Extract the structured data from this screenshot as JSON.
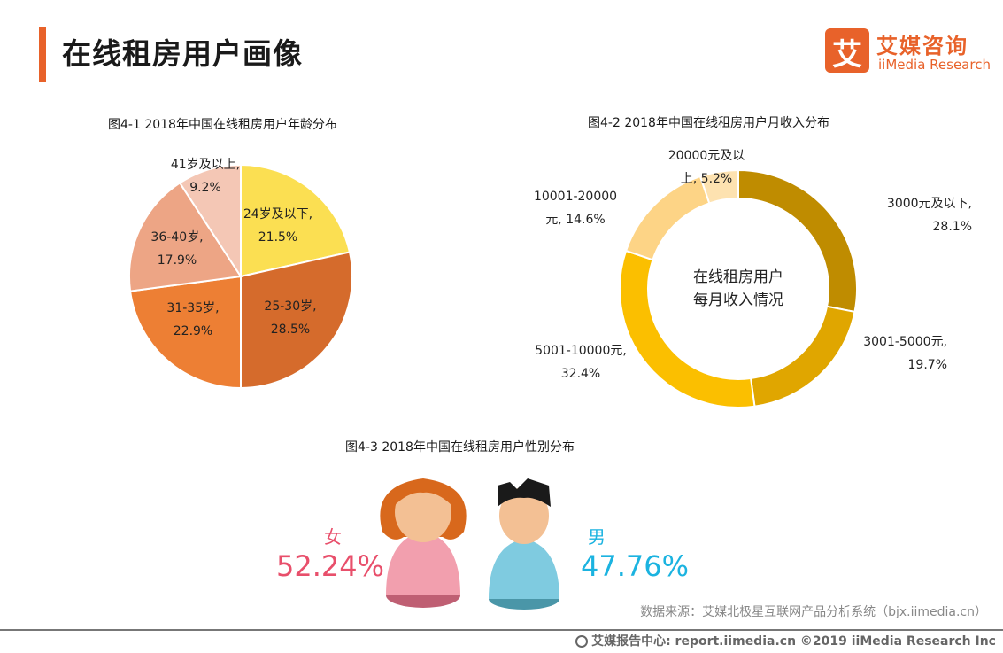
{
  "header": {
    "title": "在线租房用户画像"
  },
  "logo": {
    "mark": "艾",
    "cn": "艾媒咨询",
    "en": "iiMedia Research"
  },
  "chart_data": [
    {
      "type": "pie",
      "title": "图4-1 2018年中国在线租房用户年龄分布",
      "slices": [
        {
          "name": "24岁及以下",
          "value": 21.5,
          "label1": "24岁及以下,",
          "label2": "21.5%",
          "color": "#fbdf52"
        },
        {
          "name": "25-30岁",
          "value": 28.5,
          "label1": "25-30岁,",
          "label2": "28.5%",
          "color": "#d56b2c"
        },
        {
          "name": "31-35岁",
          "value": 22.9,
          "label1": "31-35岁,",
          "label2": "22.9%",
          "color": "#ed7f34"
        },
        {
          "name": "36-40岁",
          "value": 17.9,
          "label1": "36-40岁,",
          "label2": "17.9%",
          "color": "#eda585"
        },
        {
          "name": "41岁及以上",
          "value": 9.2,
          "label1": "41岁及以上,",
          "label2": "9.2%",
          "color": "#f4c7b5"
        }
      ]
    },
    {
      "type": "pie",
      "title": "图4-2 2018年中国在线租房用户月收入分布",
      "center_text": [
        "在线租房用户",
        "每月收入情况"
      ],
      "slices": [
        {
          "name": "3000元及以下",
          "value": 28.1,
          "label1": "3000元及以下,",
          "label2": "28.1%",
          "color": "#bf8c00"
        },
        {
          "name": "3001-5000元",
          "value": 19.7,
          "label1": "3001-5000元,",
          "label2": "19.7%",
          "color": "#e0a600"
        },
        {
          "name": "5001-10000元",
          "value": 32.4,
          "label1": "5001-10000元,",
          "label2": "32.4%",
          "color": "#fbbf00"
        },
        {
          "name": "10001-20000元",
          "value": 14.6,
          "label1": "10001-20000",
          "label2": "元, 14.6%",
          "color": "#fdd486"
        },
        {
          "name": "20000元及以上",
          "value": 5.2,
          "label1": "20000元及以",
          "label2": "上, 5.2%",
          "color": "#fde2b0"
        }
      ]
    },
    {
      "type": "table",
      "title": "图4-3 2018年中国在线租房用户性别分布",
      "rows": [
        {
          "name": "女",
          "value": 52.24,
          "display": "52.24%",
          "color": "#e84f6b"
        },
        {
          "name": "男",
          "value": 47.76,
          "display": "47.76%",
          "color": "#1bb3e0"
        }
      ]
    }
  ],
  "source": "数据来源：艾媒北极星互联网产品分析系统（bjx.iimedia.cn）",
  "footer": "艾媒报告中心: report.iimedia.cn ©2019 iiMedia Research Inc"
}
